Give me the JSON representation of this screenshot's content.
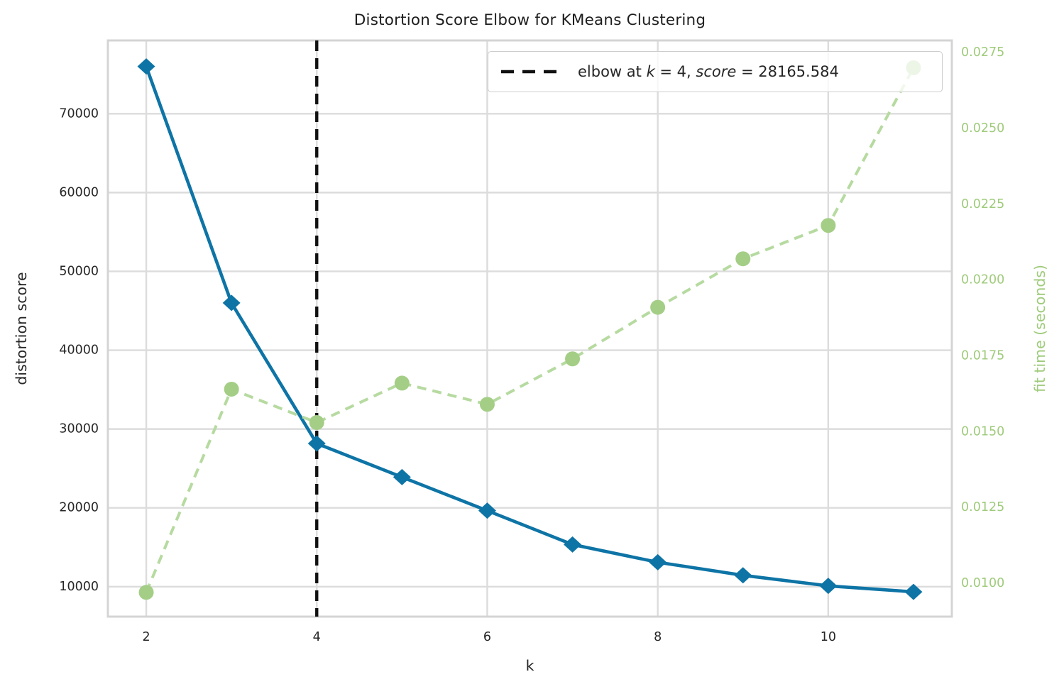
{
  "figure": {
    "title": "Distortion Score Elbow for KMeans Clustering"
  },
  "chart_data": {
    "type": "line",
    "title": "Distortion Score Elbow for KMeans Clustering",
    "xlabel": "k",
    "ylabel_left": "distortion score",
    "ylabel_right": "fit time (seconds)",
    "x": [
      2,
      3,
      4,
      5,
      6,
      7,
      8,
      9,
      10,
      11
    ],
    "series": [
      {
        "name": "distortion score",
        "axis": "left",
        "marker": "diamond",
        "line_style": "solid",
        "color": "#0e74a6",
        "values": [
          76000,
          46000,
          28165.584,
          23900,
          19650,
          15350,
          13100,
          11440,
          10100,
          9340
        ]
      },
      {
        "name": "fit time",
        "axis": "right",
        "marker": "circle",
        "line_style": "dashed",
        "color": "#a4ce86",
        "line_color": "#b6daa0",
        "values": [
          0.0097,
          0.0164,
          0.0153,
          0.0166,
          0.0159,
          0.0174,
          0.0191,
          0.0207,
          0.0218,
          0.027
        ]
      }
    ],
    "elbow": {
      "k": 4,
      "score": 28165.584,
      "line_color": "#111111",
      "line_style": "dashed"
    },
    "legend": {
      "position": "upper right",
      "label": "elbow at k = 4, score = 28165.584",
      "label_parts": [
        {
          "text": "elbow at ",
          "italic": false
        },
        {
          "text": "k",
          "italic": true
        },
        {
          "text": " = 4, ",
          "italic": false
        },
        {
          "text": "score",
          "italic": true
        },
        {
          "text": " = 28165.584",
          "italic": false
        }
      ]
    },
    "axes": {
      "x": {
        "ticks": [
          2,
          4,
          6,
          8,
          10
        ],
        "range": [
          1.55,
          11.45
        ],
        "color": "#262626"
      },
      "y_left": {
        "ticks": [
          10000,
          20000,
          30000,
          40000,
          50000,
          60000,
          70000
        ],
        "range": [
          6200,
          79300
        ],
        "color": "#262626"
      },
      "y_right": {
        "ticks": [
          "0.0100",
          "0.0125",
          "0.0150",
          "0.0175",
          "0.0200",
          "0.0225",
          "0.0250",
          "0.0275"
        ],
        "range": [
          0.0089,
          0.0279
        ],
        "color": "#9fcb7b"
      }
    },
    "grid": true,
    "colors": {
      "grid": "#dcdcdc",
      "spine": "#d4d4d4",
      "text": "#262626"
    }
  }
}
